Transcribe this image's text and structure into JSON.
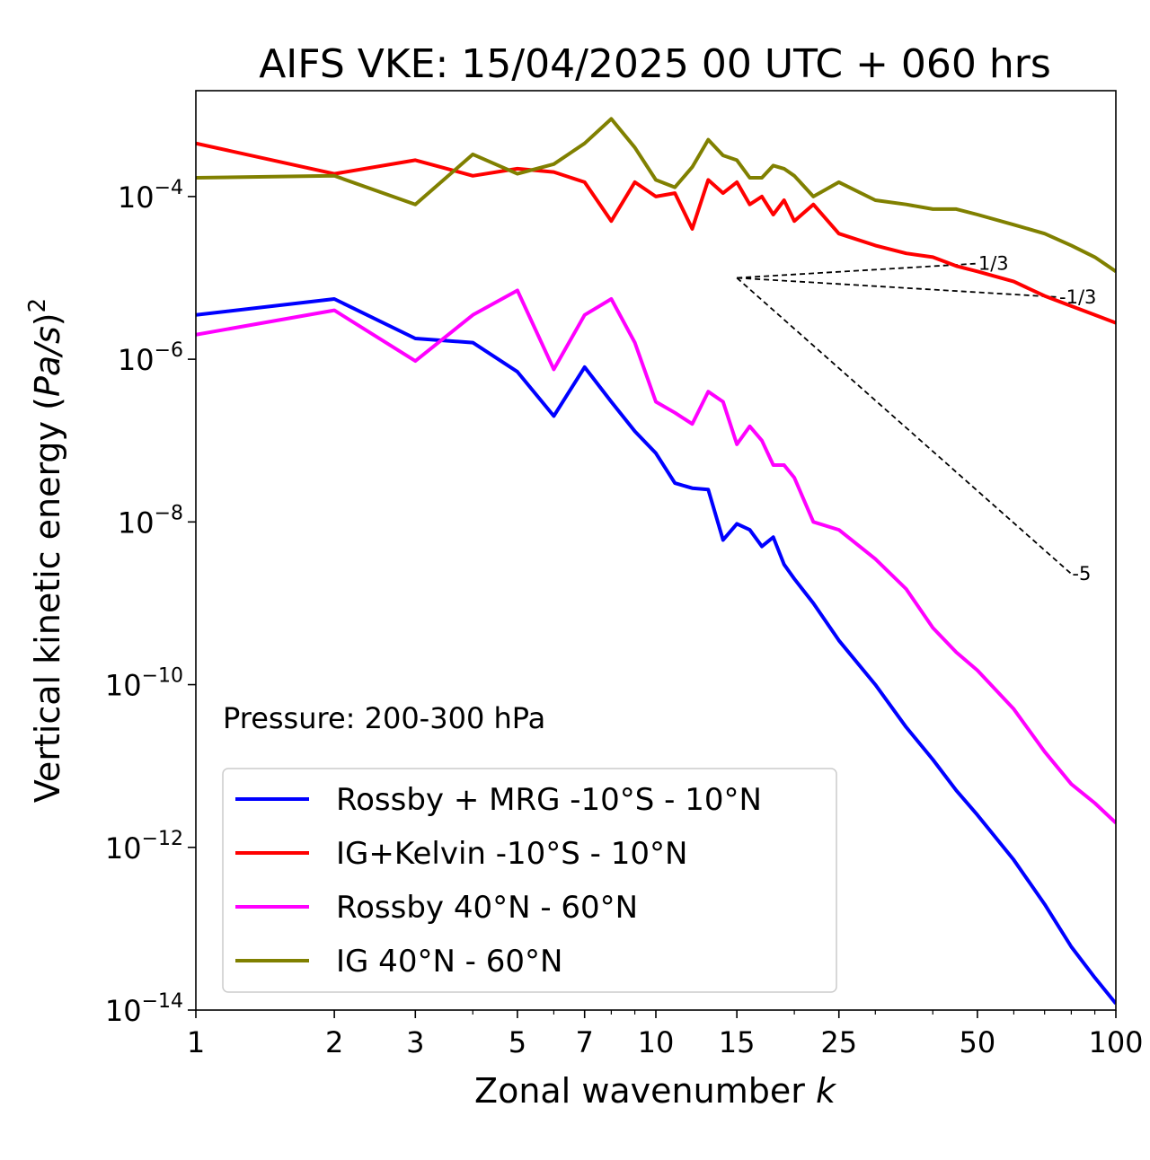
{
  "chart_data": {
    "type": "line",
    "title": "AIFS VKE: 15/04/2025 00 UTC + 060 hrs",
    "xlabel": "Zonal wavenumber k",
    "ylabel": "Vertical kinetic energy (Pa/s)²",
    "xscale": "log",
    "yscale": "log",
    "xlim": [
      1,
      100
    ],
    "ylim": [
      1e-14,
      0.002
    ],
    "x_ticks": [
      1,
      2,
      3,
      5,
      7,
      10,
      15,
      25,
      50,
      100
    ],
    "x_tick_labels": [
      "1",
      "2",
      "3",
      "5",
      "7",
      "10",
      "15",
      "25",
      "50",
      "100"
    ],
    "y_ticks": [
      0.0001,
      1e-06,
      1e-08,
      1e-10,
      1e-12,
      1e-14
    ],
    "y_tick_labels": [
      {
        "base": "10",
        "exp": "−4"
      },
      {
        "base": "10",
        "exp": "−6"
      },
      {
        "base": "10",
        "exp": "−8"
      },
      {
        "base": "10",
        "exp": "−10"
      },
      {
        "base": "10",
        "exp": "−12"
      },
      {
        "base": "10",
        "exp": "−14"
      }
    ],
    "annotation": "Pressure: 200-300 hPa",
    "legend_position": "lower-left",
    "grid": false,
    "series": [
      {
        "name": "Rossby + MRG -10°S - 10°N",
        "color": "#0000ff",
        "x": [
          1,
          2,
          3,
          4,
          5,
          6,
          7,
          8,
          9,
          10,
          11,
          12,
          13,
          14,
          15,
          16,
          17,
          18,
          19,
          20,
          22,
          25,
          30,
          35,
          40,
          45,
          50,
          60,
          70,
          80,
          90,
          100
        ],
        "y": [
          3.5e-06,
          5.5e-06,
          1.8e-06,
          1.6e-06,
          7e-07,
          2e-07,
          8e-07,
          3e-07,
          1.3e-07,
          7e-08,
          3e-08,
          2.6e-08,
          2.5e-08,
          6e-09,
          9.5e-09,
          8e-09,
          5e-09,
          6.5e-09,
          3e-09,
          2e-09,
          1e-09,
          3.5e-10,
          1e-10,
          3e-11,
          1.2e-11,
          5e-12,
          2.5e-12,
          7e-13,
          2e-13,
          6e-14,
          2.5e-14,
          1.2e-14
        ]
      },
      {
        "name": "IG+Kelvin -10°S - 10°N",
        "color": "#ff0000",
        "x": [
          1,
          2,
          3,
          4,
          5,
          6,
          7,
          8,
          9,
          10,
          11,
          12,
          13,
          14,
          15,
          16,
          17,
          18,
          19,
          20,
          22,
          25,
          30,
          35,
          40,
          45,
          50,
          60,
          70,
          80,
          90,
          100
        ],
        "y": [
          0.00045,
          0.00019,
          0.00028,
          0.00018,
          0.00022,
          0.0002,
          0.00015,
          5e-05,
          0.00015,
          0.0001,
          0.00011,
          4e-05,
          0.00016,
          0.00011,
          0.00015,
          8e-05,
          0.0001,
          6e-05,
          9e-05,
          5e-05,
          8e-05,
          3.5e-05,
          2.5e-05,
          2e-05,
          1.8e-05,
          1.4e-05,
          1.2e-05,
          9e-06,
          6e-06,
          4.5e-06,
          3.5e-06,
          2.8e-06
        ]
      },
      {
        "name": "Rossby 40°N - 60°N",
        "color": "#ff00ff",
        "x": [
          1,
          2,
          3,
          4,
          5,
          6,
          7,
          8,
          9,
          10,
          11,
          12,
          13,
          14,
          15,
          16,
          17,
          18,
          19,
          20,
          22,
          25,
          30,
          35,
          40,
          45,
          50,
          60,
          70,
          80,
          90,
          100
        ],
        "y": [
          2e-06,
          4e-06,
          9.5e-07,
          3.5e-06,
          7e-06,
          7.5e-07,
          3.5e-06,
          5.5e-06,
          1.6e-06,
          3e-07,
          2.2e-07,
          1.6e-07,
          4e-07,
          3e-07,
          9e-08,
          1.5e-07,
          1e-07,
          5e-08,
          5e-08,
          3.5e-08,
          1e-08,
          8e-09,
          3.5e-09,
          1.5e-09,
          5e-10,
          2.5e-10,
          1.5e-10,
          5e-11,
          1.5e-11,
          6e-12,
          3.5e-12,
          2e-12
        ]
      },
      {
        "name": "IG 40°N - 60°N",
        "color": "#808000",
        "x": [
          1,
          2,
          3,
          4,
          5,
          6,
          7,
          8,
          9,
          10,
          11,
          12,
          13,
          14,
          15,
          16,
          17,
          18,
          19,
          20,
          22,
          25,
          30,
          35,
          40,
          45,
          50,
          60,
          70,
          80,
          90,
          100
        ],
        "y": [
          0.00017,
          0.00018,
          8e-05,
          0.00033,
          0.00019,
          0.00025,
          0.00045,
          0.0009,
          0.0004,
          0.00016,
          0.00013,
          0.00023,
          0.0005,
          0.00032,
          0.00028,
          0.00017,
          0.00017,
          0.00024,
          0.00022,
          0.00018,
          0.0001,
          0.00015,
          9e-05,
          8e-05,
          7e-05,
          7e-05,
          6e-05,
          4.5e-05,
          3.5e-05,
          2.5e-05,
          1.8e-05,
          1.2e-05
        ]
      }
    ],
    "reference_lines": [
      {
        "label": "1/3",
        "x": [
          15,
          50
        ],
        "y": [
          1e-05,
          1.5e-05
        ]
      },
      {
        "label": "-1/3",
        "x": [
          15,
          75
        ],
        "y": [
          1e-05,
          5.8e-06
        ]
      },
      {
        "label": "-5",
        "x": [
          15,
          80
        ],
        "y": [
          1e-05,
          2.3e-09
        ]
      }
    ]
  }
}
